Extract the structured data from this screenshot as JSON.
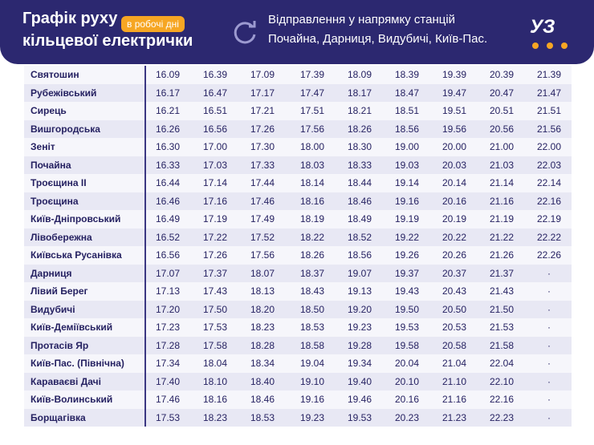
{
  "header": {
    "title": [
      "Графік руху",
      "кільцевої електрички"
    ],
    "badge": "в робочі дні",
    "subtitle": [
      "Відправлення у напрямку станцій",
      "Почайна, Дарниця, Видубичі, Київ-Пас."
    ],
    "logo": "УЗ"
  },
  "table": {
    "rows": [
      [
        "Святошин",
        "16.09",
        "16.39",
        "17.09",
        "17.39",
        "18.09",
        "18.39",
        "19.39",
        "20.39",
        "21.39"
      ],
      [
        "Рубежівський",
        "16.17",
        "16.47",
        "17.17",
        "17.47",
        "18.17",
        "18.47",
        "19.47",
        "20.47",
        "21.47"
      ],
      [
        "Сирець",
        "16.21",
        "16.51",
        "17.21",
        "17.51",
        "18.21",
        "18.51",
        "19.51",
        "20.51",
        "21.51"
      ],
      [
        "Вишгородська",
        "16.26",
        "16.56",
        "17.26",
        "17.56",
        "18.26",
        "18.56",
        "19.56",
        "20.56",
        "21.56"
      ],
      [
        "Зеніт",
        "16.30",
        "17.00",
        "17.30",
        "18.00",
        "18.30",
        "19.00",
        "20.00",
        "21.00",
        "22.00"
      ],
      [
        "Почайна",
        "16.33",
        "17.03",
        "17.33",
        "18.03",
        "18.33",
        "19.03",
        "20.03",
        "21.03",
        "22.03"
      ],
      [
        "Троєщина II",
        "16.44",
        "17.14",
        "17.44",
        "18.14",
        "18.44",
        "19.14",
        "20.14",
        "21.14",
        "22.14"
      ],
      [
        "Троєщина",
        "16.46",
        "17.16",
        "17.46",
        "18.16",
        "18.46",
        "19.16",
        "20.16",
        "21.16",
        "22.16"
      ],
      [
        "Київ-Дніпровський",
        "16.49",
        "17.19",
        "17.49",
        "18.19",
        "18.49",
        "19.19",
        "20.19",
        "21.19",
        "22.19"
      ],
      [
        "Лівобережна",
        "16.52",
        "17.22",
        "17.52",
        "18.22",
        "18.52",
        "19.22",
        "20.22",
        "21.22",
        "22.22"
      ],
      [
        "Київська Русанівка",
        "16.56",
        "17.26",
        "17.56",
        "18.26",
        "18.56",
        "19.26",
        "20.26",
        "21.26",
        "22.26"
      ],
      [
        "Дарниця",
        "17.07",
        "17.37",
        "18.07",
        "18.37",
        "19.07",
        "19.37",
        "20.37",
        "21.37",
        "·"
      ],
      [
        "Лівий Берег",
        "17.13",
        "17.43",
        "18.13",
        "18.43",
        "19.13",
        "19.43",
        "20.43",
        "21.43",
        "·"
      ],
      [
        "Видубичі",
        "17.20",
        "17.50",
        "18.20",
        "18.50",
        "19.20",
        "19.50",
        "20.50",
        "21.50",
        "·"
      ],
      [
        "Київ-Деміївський",
        "17.23",
        "17.53",
        "18.23",
        "18.53",
        "19.23",
        "19.53",
        "20.53",
        "21.53",
        "·"
      ],
      [
        "Протасів Яр",
        "17.28",
        "17.58",
        "18.28",
        "18.58",
        "19.28",
        "19.58",
        "20.58",
        "21.58",
        "·"
      ],
      [
        "Київ-Пас. (Північна)",
        "17.34",
        "18.04",
        "18.34",
        "19.04",
        "19.34",
        "20.04",
        "21.04",
        "22.04",
        "·"
      ],
      [
        "Караваєві Дачі",
        "17.40",
        "18.10",
        "18.40",
        "19.10",
        "19.40",
        "20.10",
        "21.10",
        "22.10",
        "·"
      ],
      [
        "Київ-Волинський",
        "17.46",
        "18.16",
        "18.46",
        "19.16",
        "19.46",
        "20.16",
        "21.16",
        "22.16",
        "·"
      ],
      [
        "Борщагівка",
        "17.53",
        "18.23",
        "18.53",
        "19.23",
        "19.53",
        "20.23",
        "21.23",
        "22.23",
        "·"
      ]
    ]
  }
}
